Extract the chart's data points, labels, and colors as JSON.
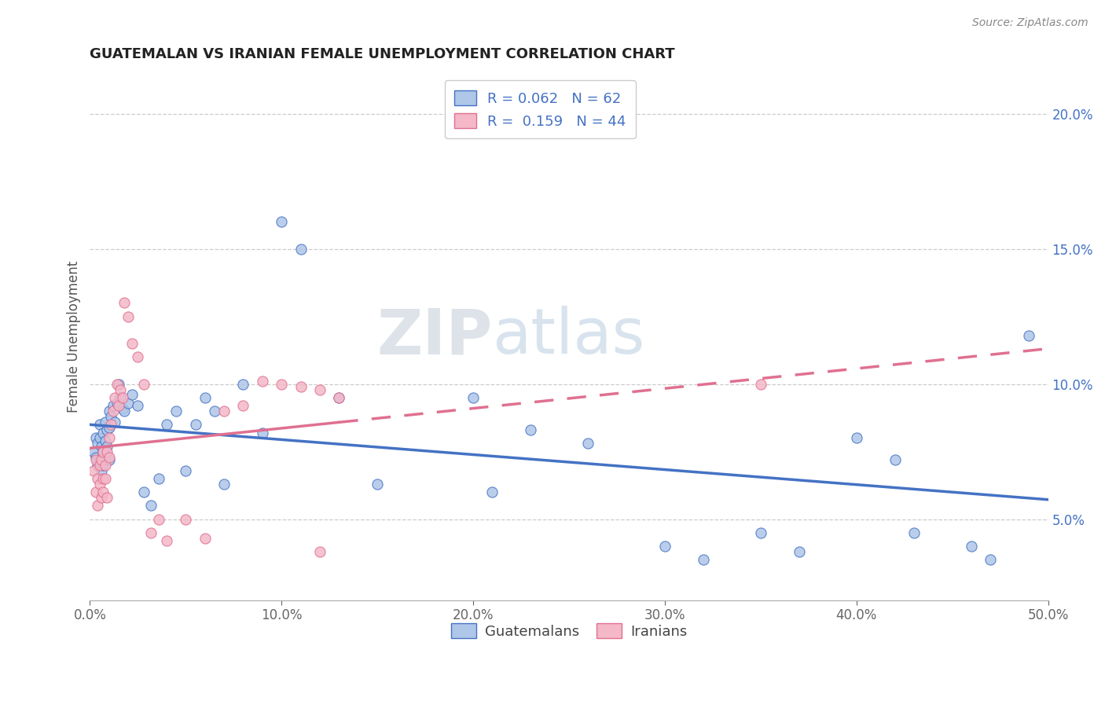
{
  "title": "GUATEMALAN VS IRANIAN FEMALE UNEMPLOYMENT CORRELATION CHART",
  "source": "Source: ZipAtlas.com",
  "ylabel": "Female Unemployment",
  "xlim": [
    0.0,
    0.5
  ],
  "ylim": [
    0.02,
    0.215
  ],
  "xticks": [
    0.0,
    0.1,
    0.2,
    0.3,
    0.4,
    0.5
  ],
  "yticks_right": [
    0.05,
    0.1,
    0.15,
    0.2
  ],
  "guatemalan_color": "#aec6e8",
  "iranian_color": "#f4b8c8",
  "guatemalan_line_color": "#4472c4",
  "iranian_line_color": "#e07090",
  "watermark": "ZIPatlas",
  "R_guatemalan": 0.062,
  "N_guatemalan": 62,
  "R_iranian": 0.159,
  "N_iranian": 44,
  "guatemalan_x": [
    0.002,
    0.003,
    0.003,
    0.004,
    0.004,
    0.005,
    0.005,
    0.005,
    0.006,
    0.006,
    0.007,
    0.007,
    0.007,
    0.008,
    0.008,
    0.008,
    0.009,
    0.009,
    0.01,
    0.01,
    0.01,
    0.011,
    0.012,
    0.013,
    0.014,
    0.015,
    0.016,
    0.017,
    0.018,
    0.02,
    0.022,
    0.025,
    0.028,
    0.032,
    0.036,
    0.04,
    0.045,
    0.05,
    0.055,
    0.06,
    0.065,
    0.07,
    0.08,
    0.09,
    0.1,
    0.11,
    0.13,
    0.15,
    0.2,
    0.21,
    0.23,
    0.26,
    0.3,
    0.32,
    0.35,
    0.37,
    0.4,
    0.42,
    0.43,
    0.46,
    0.47,
    0.49
  ],
  "guatemalan_y": [
    0.075,
    0.073,
    0.08,
    0.07,
    0.078,
    0.072,
    0.08,
    0.085,
    0.068,
    0.077,
    0.082,
    0.075,
    0.07,
    0.086,
    0.079,
    0.073,
    0.083,
    0.077,
    0.09,
    0.084,
    0.072,
    0.088,
    0.092,
    0.086,
    0.093,
    0.1,
    0.095,
    0.091,
    0.09,
    0.093,
    0.096,
    0.092,
    0.06,
    0.055,
    0.065,
    0.085,
    0.09,
    0.068,
    0.085,
    0.095,
    0.09,
    0.063,
    0.1,
    0.082,
    0.16,
    0.15,
    0.095,
    0.063,
    0.095,
    0.06,
    0.083,
    0.078,
    0.04,
    0.035,
    0.045,
    0.038,
    0.08,
    0.072,
    0.045,
    0.04,
    0.035,
    0.118
  ],
  "iranian_x": [
    0.002,
    0.003,
    0.003,
    0.004,
    0.004,
    0.005,
    0.005,
    0.006,
    0.006,
    0.007,
    0.007,
    0.007,
    0.008,
    0.008,
    0.009,
    0.009,
    0.01,
    0.01,
    0.011,
    0.012,
    0.013,
    0.014,
    0.015,
    0.016,
    0.017,
    0.018,
    0.02,
    0.022,
    0.025,
    0.028,
    0.032,
    0.036,
    0.04,
    0.05,
    0.06,
    0.07,
    0.08,
    0.09,
    0.1,
    0.11,
    0.12,
    0.13,
    0.35,
    0.12
  ],
  "iranian_y": [
    0.068,
    0.06,
    0.072,
    0.065,
    0.055,
    0.07,
    0.063,
    0.058,
    0.072,
    0.065,
    0.075,
    0.06,
    0.07,
    0.065,
    0.058,
    0.075,
    0.073,
    0.08,
    0.085,
    0.09,
    0.095,
    0.1,
    0.092,
    0.098,
    0.095,
    0.13,
    0.125,
    0.115,
    0.11,
    0.1,
    0.045,
    0.05,
    0.042,
    0.05,
    0.043,
    0.09,
    0.092,
    0.101,
    0.1,
    0.099,
    0.098,
    0.095,
    0.1,
    0.038
  ]
}
